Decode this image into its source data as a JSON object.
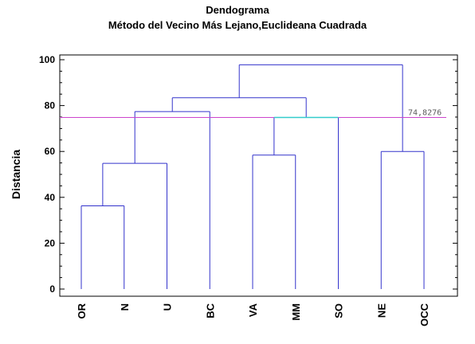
{
  "chart_data": {
    "type": "dendrogram",
    "title": "Dendograma",
    "subtitle": "Método del Vecino Más Lejano,Euclideana Cuadrada",
    "ylabel": "Distancia",
    "ylim": [
      0,
      105
    ],
    "yticks": [
      0,
      20,
      40,
      60,
      80,
      100
    ],
    "leaves": [
      "OR",
      "N",
      "U",
      "BC",
      "VA",
      "MM",
      "SO",
      "NE",
      "OCC"
    ],
    "merges": [
      {
        "left": "OR",
        "right": "N",
        "height": 36.3
      },
      {
        "left": "OR+N",
        "right": "U",
        "height": 54.8
      },
      {
        "left": "VA",
        "right": "MM",
        "height": 58.4
      },
      {
        "left": "NE",
        "right": "OCC",
        "height": 60.0
      },
      {
        "left": "OR+N+U",
        "right": "BC",
        "height": 77.4
      },
      {
        "left": "VA+MM",
        "right": "SO",
        "height": 74.8276
      },
      {
        "left": "OR+N+U+BC",
        "right": "VA+MM+SO",
        "height": 83.4
      },
      {
        "left": "OR+N+U+BC+VA+MM+SO",
        "right": "NE+OCC",
        "height": 97.8
      }
    ],
    "cut_line": {
      "value": 74.8276,
      "label": "74,8276"
    },
    "colors": {
      "tree": "#3333cc",
      "cut_line": "#cc44cc",
      "cut_segment": "#33cccc",
      "axis": "#000000"
    }
  }
}
